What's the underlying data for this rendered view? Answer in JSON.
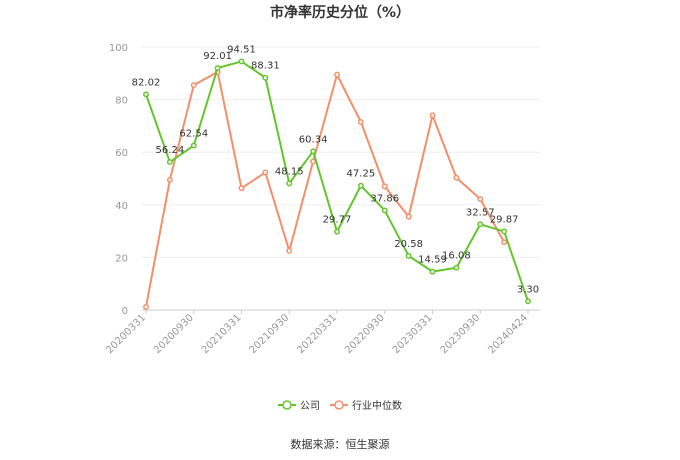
{
  "chart_data": {
    "type": "line",
    "title": "市净率历史分位（%）",
    "x_tick_labels": [
      "20200331",
      "20200930",
      "20210331",
      "20210930",
      "20220331",
      "20220930",
      "20230331",
      "20230930",
      "20240424"
    ],
    "ylim": [
      0,
      100
    ],
    "y_ticks": [
      0,
      20,
      40,
      60,
      80,
      100
    ],
    "grid": true,
    "legend_position": "bottom",
    "series": [
      {
        "name": "公司",
        "color": "#65c52d",
        "values": [
          82.02,
          56.24,
          62.54,
          92.01,
          94.51,
          88.31,
          48.15,
          60.34,
          29.77,
          47.25,
          37.86,
          20.58,
          14.59,
          16.08,
          32.57,
          29.87,
          3.3
        ],
        "labels": [
          "82.02",
          "56.24",
          "62.54",
          "92.01",
          "94.51",
          "88.31",
          "48.15",
          "60.34",
          "29.77",
          "47.25",
          "37.86",
          "20.58",
          "14.59",
          "16.08",
          "32.57",
          "29.87",
          "3.30"
        ]
      },
      {
        "name": "行业中位数",
        "color": "#f3906a",
        "values": [
          1.2,
          49.5,
          85.5,
          90.5,
          46.3,
          52.3,
          22.5,
          56.5,
          89.5,
          71.5,
          47.0,
          35.5,
          74.0,
          50.3,
          42.2,
          25.8,
          null
        ]
      }
    ]
  },
  "source_text": "数据来源：恒生聚源"
}
